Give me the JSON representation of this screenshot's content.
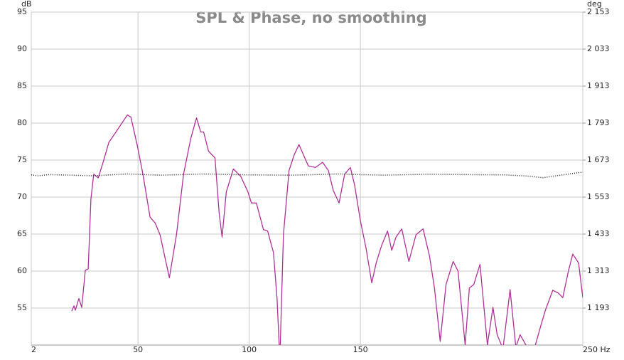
{
  "chart_data": {
    "type": "line",
    "title": "SPL & Phase, no smoothing",
    "y_label": "dB",
    "y2_label": "deg",
    "xlim": [
      2,
      250
    ],
    "xticks": [
      2,
      50,
      100,
      150,
      {
        "value": 250,
        "label": "250 Hz"
      }
    ],
    "ylim": [
      50,
      95
    ],
    "yticks": [
      55,
      60,
      65,
      70,
      75,
      80,
      85,
      90,
      95
    ],
    "y2lim": [
      1073,
      2153
    ],
    "y2ticks": [
      {
        "value": 1193,
        "label": "1 193"
      },
      {
        "value": 1313,
        "label": "1 313"
      },
      {
        "value": 1433,
        "label": "1 433"
      },
      {
        "value": 1553,
        "label": "1 553"
      },
      {
        "value": 1673,
        "label": "1 673"
      },
      {
        "value": 1793,
        "label": "1 793"
      },
      {
        "value": 1913,
        "label": "1 913"
      },
      {
        "value": 2033,
        "label": "2 033"
      },
      {
        "value": 2153,
        "label": "2 153"
      }
    ],
    "grid": true,
    "series": [
      {
        "name": "SPL",
        "color": "#b0309a",
        "style": "solid",
        "x": [
          20.2,
          21.2,
          21.8,
          23.4,
          24.7,
          26.3,
          27.6,
          28.8,
          30.1,
          32.1,
          34.3,
          36.9,
          40.1,
          42.3,
          45.2,
          46.8,
          49.7,
          52.2,
          55.4,
          57.7,
          59.9,
          64.1,
          67.3,
          70.5,
          73.7,
          76.3,
          78.2,
          79.5,
          81.7,
          84.6,
          86.5,
          87.8,
          89.7,
          92.9,
          96.2,
          99.4,
          101.0,
          103.2,
          106.4,
          108.3,
          110.9,
          112.5,
          113.8,
          115.4,
          117.9,
          120.2,
          122.4,
          124.4,
          126.6,
          129.8,
          133.0,
          135.6,
          137.8,
          140.4,
          142.9,
          145.5,
          147.4,
          150.0,
          152.6,
          155.1,
          157.1,
          159.6,
          162.2,
          164.1,
          166.0,
          168.6,
          171.8,
          175.0,
          178.2,
          181.1,
          183.3,
          185.9,
          188.5,
          191.7,
          193.9,
          197.1,
          199.0,
          201.0,
          203.8,
          207.1,
          209.6,
          211.5,
          214.1,
          217.3,
          219.9,
          221.8,
          225.0,
          228.2,
          231.4,
          233.3,
          236.5,
          239.1,
          241.0,
          243.6,
          245.5,
          248.1,
          250.0
        ],
        "values": [
          54.6,
          55.3,
          54.7,
          56.3,
          55.1,
          60.1,
          60.3,
          69.7,
          73.1,
          72.6,
          74.7,
          77.4,
          78.8,
          79.8,
          81.1,
          80.8,
          76.9,
          73.1,
          67.3,
          66.5,
          64.9,
          59.1,
          64.9,
          73.1,
          77.9,
          80.7,
          78.8,
          78.8,
          76.2,
          75.3,
          67.8,
          64.6,
          70.7,
          73.8,
          72.8,
          70.7,
          69.2,
          69.2,
          65.6,
          65.4,
          62.5,
          56.3,
          48,
          64.9,
          73.6,
          75.7,
          77.1,
          75.7,
          74.2,
          74.0,
          74.7,
          73.6,
          70.9,
          69.2,
          73.1,
          74.0,
          71.6,
          66.8,
          63.0,
          58.4,
          61.1,
          63.5,
          65.4,
          62.8,
          64.6,
          65.7,
          61.3,
          64.9,
          65.7,
          62.0,
          57.7,
          50.5,
          58.2,
          61.3,
          60.0,
          50,
          57.7,
          58.2,
          60.9,
          50,
          55.1,
          51.4,
          49.5,
          57.5,
          49.7,
          51.4,
          49.7,
          49.5,
          52.9,
          54.8,
          57.4,
          57.0,
          56.4,
          60.1,
          62.3,
          61.1,
          56.4
        ]
      },
      {
        "name": "Phase",
        "color": "#333333",
        "style": "dotted",
        "axis": "y2",
        "x": [
          2,
          5,
          10,
          20,
          30,
          45,
          60,
          80,
          100,
          120,
          140,
          160,
          180,
          200,
          215,
          225,
          232,
          240,
          250
        ],
        "values": [
          1625,
          1622,
          1626,
          1624,
          1622,
          1628,
          1624,
          1628,
          1625,
          1624,
          1628,
          1624,
          1627,
          1626,
          1625,
          1621,
          1616,
          1624,
          1634
        ]
      }
    ]
  }
}
